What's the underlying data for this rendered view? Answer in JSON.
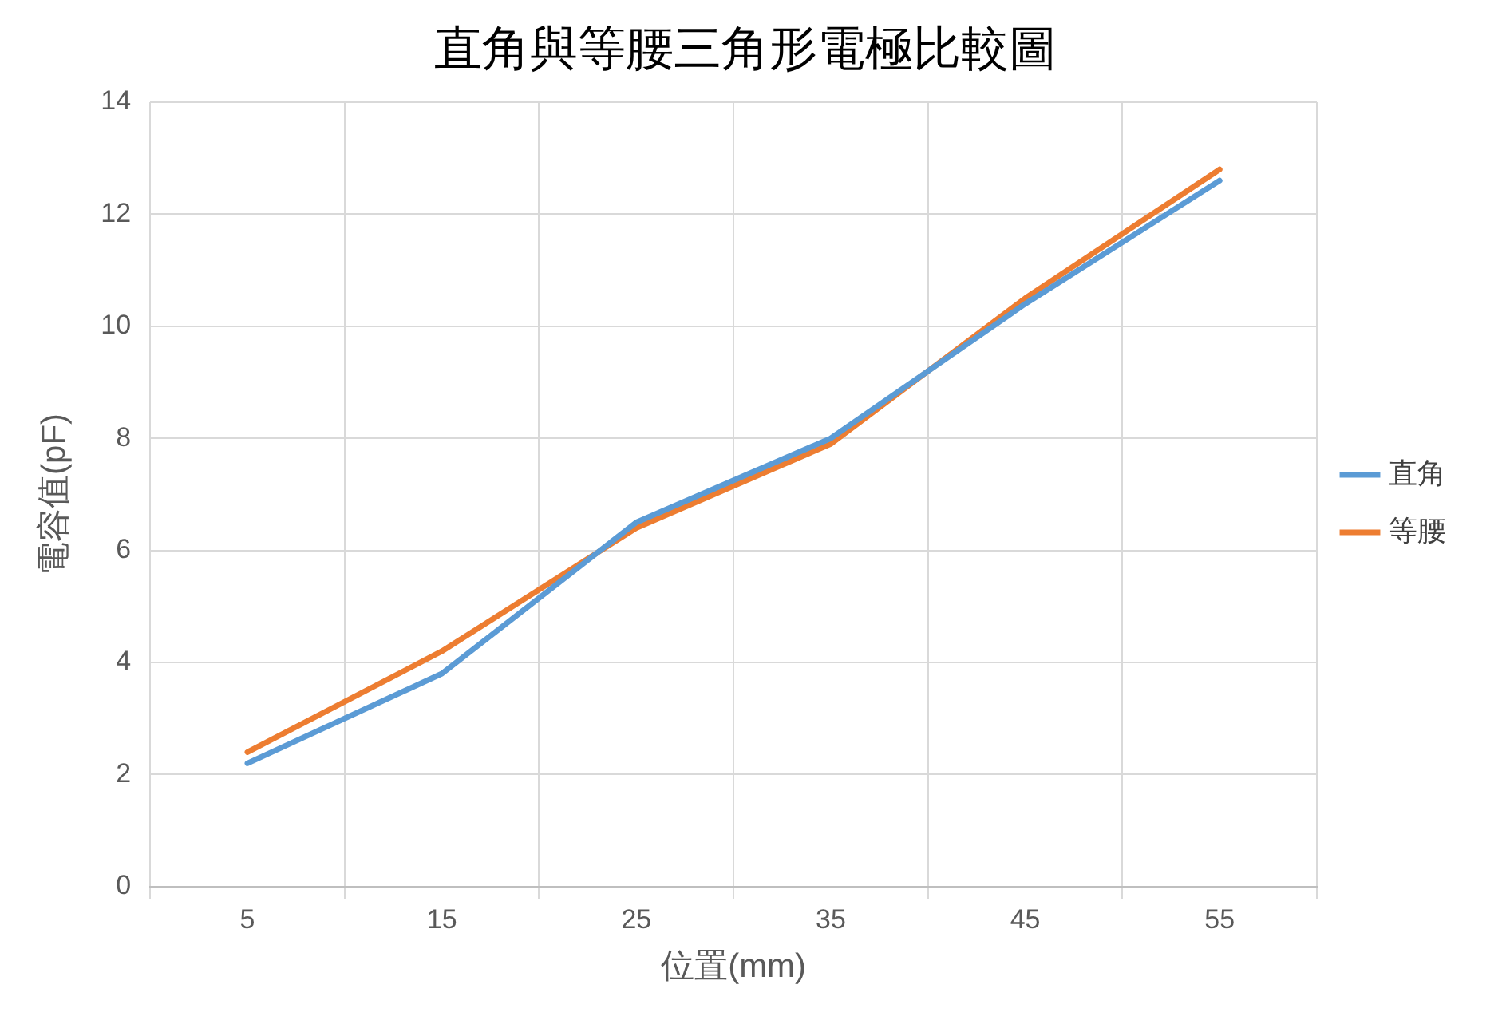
{
  "chart_data": {
    "type": "line",
    "title": "直角與等腰三角形電極比較圖",
    "xlabel": "位置(mm)",
    "ylabel": "電容值(pF)",
    "categories": [
      "5",
      "15",
      "25",
      "35",
      "45",
      "55"
    ],
    "series": [
      {
        "name": "直角",
        "color": "#5b9bd5",
        "values": [
          2.2,
          3.8,
          6.5,
          8.0,
          10.4,
          12.6
        ]
      },
      {
        "name": "等腰",
        "color": "#ed7d31",
        "values": [
          2.4,
          4.2,
          6.4,
          7.9,
          10.5,
          12.8
        ]
      }
    ],
    "ylim": [
      0,
      14
    ],
    "yticks": [
      0,
      2,
      4,
      6,
      8,
      10,
      12,
      14
    ],
    "grid": true,
    "legend": "right",
    "marker": "none",
    "line_style": "solid"
  }
}
